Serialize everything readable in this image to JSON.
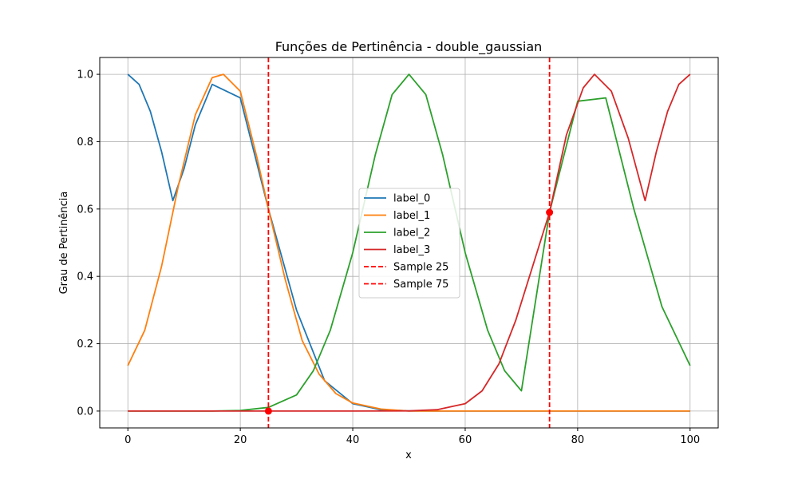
{
  "chart_data": {
    "type": "line",
    "title": "Funções de Pertinência - double_gaussian",
    "xlabel": "x",
    "ylabel": "Grau de Pertinência",
    "xlim": [
      -5,
      105
    ],
    "ylim": [
      -0.05,
      1.05
    ],
    "xticks": [
      0,
      20,
      40,
      60,
      80,
      100
    ],
    "xtick_labels": [
      "0",
      "20",
      "40",
      "60",
      "80",
      "100"
    ],
    "yticks": [
      0.0,
      0.2,
      0.4,
      0.6,
      0.8,
      1.0
    ],
    "ytick_labels": [
      "0.0",
      "0.2",
      "0.4",
      "0.6",
      "0.8",
      "1.0"
    ],
    "grid": true,
    "legend_position": "center",
    "series": [
      {
        "name": "label_0",
        "color": "#1f77b4",
        "x": [
          0,
          2,
          4,
          6,
          8,
          10,
          12,
          15,
          20,
          25,
          30,
          35,
          40,
          45,
          50,
          55,
          60,
          65,
          70,
          75,
          80,
          85,
          90,
          95,
          100
        ],
        "y": [
          1.0,
          0.97,
          0.89,
          0.77,
          0.625,
          0.72,
          0.85,
          0.97,
          0.93,
          0.6,
          0.3,
          0.09,
          0.022,
          0.004,
          0.0004,
          0.0,
          0.0,
          0.0,
          0.0,
          0.0,
          0.0,
          0.0,
          0.0,
          0.0,
          0.0
        ]
      },
      {
        "name": "label_1",
        "color": "#ff7f0e",
        "x": [
          0,
          3,
          6,
          9,
          12,
          15,
          17,
          20,
          23,
          25,
          28,
          31,
          34,
          37,
          40,
          45,
          50,
          55,
          60,
          65,
          70,
          75,
          80,
          85,
          90,
          95,
          100
        ],
        "y": [
          0.135,
          0.24,
          0.43,
          0.67,
          0.88,
          0.99,
          1.0,
          0.95,
          0.75,
          0.6,
          0.39,
          0.21,
          0.11,
          0.052,
          0.024,
          0.006,
          0.0,
          0.0,
          0.0,
          0.0,
          0.0,
          0.0,
          0.0,
          0.0,
          0.0,
          0.0,
          0.0
        ]
      },
      {
        "name": "label_2",
        "color": "#2ca02c",
        "x": [
          0,
          10,
          15,
          20,
          25,
          30,
          33,
          36,
          40,
          44,
          47,
          50,
          53,
          56,
          60,
          64,
          67,
          70,
          75,
          80,
          85,
          90,
          95,
          100
        ],
        "y": [
          0.0,
          0.0,
          0.0,
          0.002,
          0.011,
          0.048,
          0.12,
          0.24,
          0.47,
          0.76,
          0.94,
          1.0,
          0.94,
          0.76,
          0.47,
          0.24,
          0.12,
          0.06,
          0.59,
          0.92,
          0.93,
          0.6,
          0.31,
          0.135
        ]
      },
      {
        "name": "label_3",
        "color": "#d62728",
        "x": [
          0,
          20,
          40,
          50,
          55,
          60,
          63,
          66,
          69,
          72,
          75,
          78,
          81,
          83,
          86,
          89,
          92,
          94,
          96,
          98,
          100
        ],
        "y": [
          0.0,
          0.0,
          0.0,
          0.0004,
          0.004,
          0.022,
          0.06,
          0.14,
          0.27,
          0.43,
          0.59,
          0.82,
          0.96,
          1.0,
          0.95,
          0.81,
          0.625,
          0.77,
          0.89,
          0.97,
          1.0
        ]
      }
    ],
    "samples": [
      {
        "name": "Sample 25",
        "x": 25,
        "y": 0.0,
        "color": "#ff0000"
      },
      {
        "name": "Sample 75",
        "x": 75,
        "y": 0.59,
        "color": "#ff0000"
      }
    ]
  }
}
